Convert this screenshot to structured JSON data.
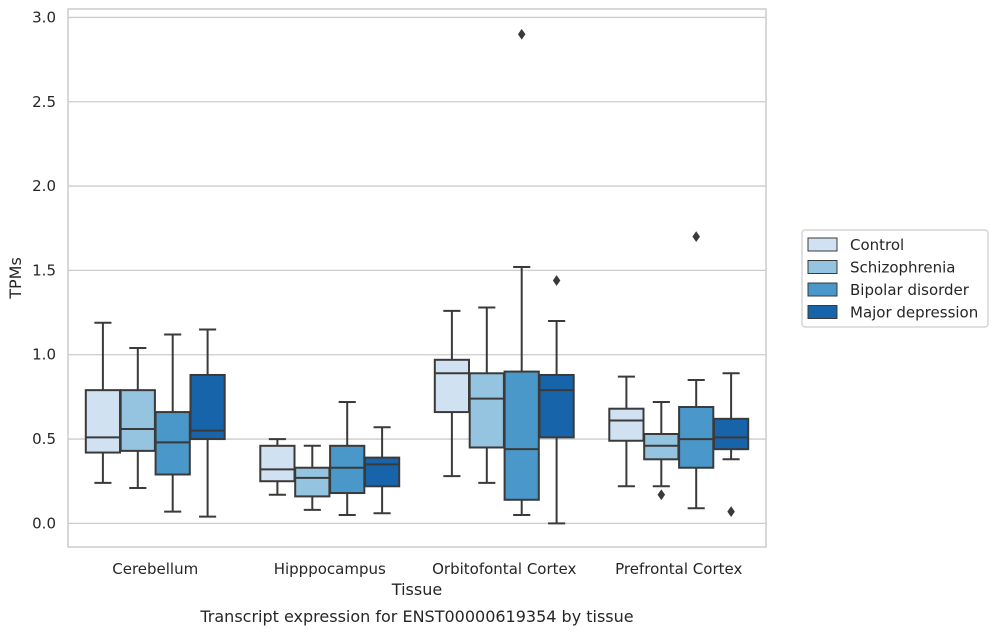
{
  "chart_data": {
    "type": "box",
    "title": "",
    "caption": "Transcript expression for ENST00000619354 by tissue",
    "xlabel": "Tissue",
    "ylabel": "TPMs",
    "ylim": [
      -0.14,
      3.05
    ],
    "yticks": [
      0.0,
      0.5,
      1.0,
      1.5,
      2.0,
      2.5,
      3.0
    ],
    "ytick_labels": [
      "0.0",
      "0.5",
      "1.0",
      "1.5",
      "2.0",
      "2.5",
      "3.0"
    ],
    "grid": "horizontal",
    "legend_position": "right, outside plot",
    "categories": [
      "Cerebellum",
      "Hipppocampus",
      "Orbitofontal Cortex",
      "Prefrontal Cortex"
    ],
    "series": [
      {
        "name": "Control",
        "color": "#d0e1f2",
        "boxes": [
          {
            "whislo": 0.24,
            "q1": 0.42,
            "med": 0.51,
            "q3": 0.79,
            "whishi": 1.19,
            "fliers": []
          },
          {
            "whislo": 0.17,
            "q1": 0.25,
            "med": 0.32,
            "q3": 0.46,
            "whishi": 0.5,
            "fliers": []
          },
          {
            "whislo": 0.28,
            "q1": 0.66,
            "med": 0.89,
            "q3": 0.97,
            "whishi": 1.26,
            "fliers": []
          },
          {
            "whislo": 0.22,
            "q1": 0.49,
            "med": 0.61,
            "q3": 0.68,
            "whishi": 0.87,
            "fliers": []
          }
        ]
      },
      {
        "name": "Schizophrenia",
        "color": "#94c4df",
        "boxes": [
          {
            "whislo": 0.21,
            "q1": 0.43,
            "med": 0.56,
            "q3": 0.79,
            "whishi": 1.04,
            "fliers": []
          },
          {
            "whislo": 0.08,
            "q1": 0.16,
            "med": 0.27,
            "q3": 0.33,
            "whishi": 0.46,
            "fliers": []
          },
          {
            "whislo": 0.24,
            "q1": 0.45,
            "med": 0.74,
            "q3": 0.89,
            "whishi": 1.28,
            "fliers": []
          },
          {
            "whislo": 0.22,
            "q1": 0.38,
            "med": 0.46,
            "q3": 0.53,
            "whishi": 0.72,
            "fliers": [
              0.17
            ]
          }
        ]
      },
      {
        "name": "Bipolar disorder",
        "color": "#4a98c9",
        "boxes": [
          {
            "whislo": 0.07,
            "q1": 0.29,
            "med": 0.48,
            "q3": 0.66,
            "whishi": 1.12,
            "fliers": []
          },
          {
            "whislo": 0.05,
            "q1": 0.18,
            "med": 0.33,
            "q3": 0.46,
            "whishi": 0.72,
            "fliers": []
          },
          {
            "whislo": 0.05,
            "q1": 0.14,
            "med": 0.44,
            "q3": 0.9,
            "whishi": 1.52,
            "fliers": [
              2.9
            ]
          },
          {
            "whislo": 0.09,
            "q1": 0.33,
            "med": 0.5,
            "q3": 0.69,
            "whishi": 0.85,
            "fliers": [
              1.7
            ]
          }
        ]
      },
      {
        "name": "Major depression",
        "color": "#1764ab",
        "boxes": [
          {
            "whislo": 0.04,
            "q1": 0.5,
            "med": 0.55,
            "q3": 0.88,
            "whishi": 1.15,
            "fliers": []
          },
          {
            "whislo": 0.06,
            "q1": 0.22,
            "med": 0.35,
            "q3": 0.39,
            "whishi": 0.57,
            "fliers": []
          },
          {
            "whislo": 0.0,
            "q1": 0.51,
            "med": 0.79,
            "q3": 0.88,
            "whishi": 1.2,
            "fliers": [
              1.44
            ]
          },
          {
            "whislo": 0.38,
            "q1": 0.44,
            "med": 0.51,
            "q3": 0.62,
            "whishi": 0.89,
            "fliers": [
              0.07
            ]
          }
        ]
      }
    ],
    "colors": {
      "box_edge": "#3a3a3a",
      "grid": "#cccccc",
      "axes_edge": "#cccccc",
      "text": "#262626"
    }
  }
}
